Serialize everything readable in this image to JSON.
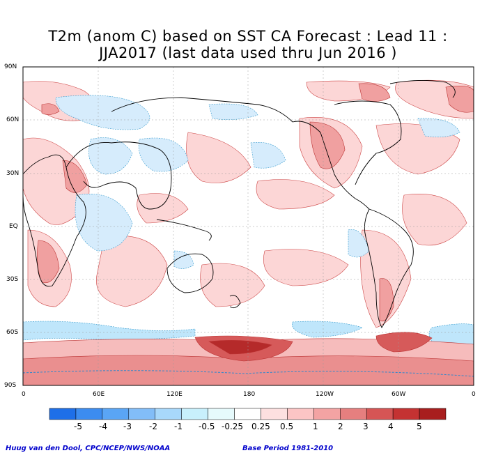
{
  "title": {
    "line1": "T2m (anom C) based on SST CA Forecast : Lead 11 :",
    "line2": "JJA2017 (last data used thru Jun 2016 )"
  },
  "axes": {
    "lat_labels": [
      "90N",
      "60N",
      "30N",
      "EQ",
      "30S",
      "60S",
      "90S"
    ],
    "lon_labels": [
      "0",
      "60E",
      "120E",
      "180",
      "120W",
      "60W",
      "0"
    ]
  },
  "colorbar": {
    "labels": [
      "-5",
      "-4",
      "-3",
      "-2",
      "-1",
      "-0.5",
      "-0.25",
      "0.25",
      "0.5",
      "1",
      "2",
      "3",
      "4",
      "5"
    ],
    "colors": [
      "#1e6fe8",
      "#3c8cf0",
      "#5aa5f5",
      "#82bdf8",
      "#a8d8fb",
      "#c8f0fc",
      "#e6fafc",
      "#ffffff",
      "#fde0e0",
      "#fcc5c5",
      "#f3a3a3",
      "#e67f7f",
      "#d65555",
      "#c43232",
      "#a81e1e"
    ]
  },
  "credits": {
    "left": "Huug van den Dool, CPC/NCEP/NWS/NOAA",
    "right": "Base Period 1981-2010"
  }
}
